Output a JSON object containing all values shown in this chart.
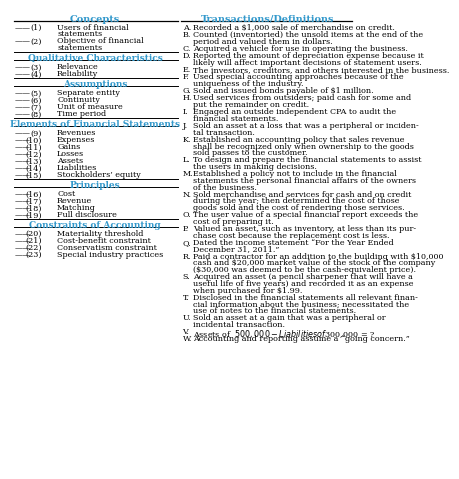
{
  "title_left": "Concepts",
  "title_right": "Transactions/Definitions",
  "header_color": "#3399CC",
  "text_color": "#000000",
  "bg_color": "#FFFFFF",
  "left_sections": [
    {
      "heading": null,
      "items": [
        [
          "(1)",
          "Users of financial",
          "statements"
        ],
        [
          "(2)",
          "Objective of financial",
          "statements"
        ]
      ]
    },
    {
      "heading": "Qualitative Characteristics",
      "items": [
        [
          "(3)",
          "Relevance"
        ],
        [
          "(4)",
          "Reliability"
        ]
      ]
    },
    {
      "heading": "Assumptions",
      "items": [
        [
          "(5)",
          "Separate entity"
        ],
        [
          "(6)",
          "Continuity"
        ],
        [
          "(7)",
          "Unit of measure"
        ],
        [
          "(8)",
          "Time period"
        ]
      ]
    },
    {
      "heading": "Elements of Financial Statements",
      "items": [
        [
          "(9)",
          "Revenues"
        ],
        [
          "(10)",
          "Expenses"
        ],
        [
          "(11)",
          "Gains"
        ],
        [
          "(12)",
          "Losses"
        ],
        [
          "(13)",
          "Assets"
        ],
        [
          "(14)",
          "Liabilities"
        ],
        [
          "(15)",
          "Stockholders’ equity"
        ]
      ]
    },
    {
      "heading": "Principles",
      "items": [
        [
          "(16)",
          "Cost"
        ],
        [
          "(17)",
          "Revenue"
        ],
        [
          "(18)",
          "Matching"
        ],
        [
          "(19)",
          "Full disclosure"
        ]
      ]
    },
    {
      "heading": "Constraints of Accounting",
      "items": [
        [
          "(20)",
          "Materiality threshold"
        ],
        [
          "(21)",
          "Cost-benefit constraint"
        ],
        [
          "(22)",
          "Conservatism constraint"
        ],
        [
          "(23)",
          "Special industry practices"
        ]
      ]
    }
  ],
  "right_items": [
    [
      "A.",
      "Recorded a $1,000 sale of merchandise on credit."
    ],
    [
      "B.",
      "Counted (inventoried) the unsold items at the end of the",
      "period and valued them in dollars."
    ],
    [
      "C.",
      "Acquired a vehicle for use in operating the business."
    ],
    [
      "D.",
      "Reported the amount of depreciation expense because it",
      "likely will affect important decisions of statement users."
    ],
    [
      "E.",
      "The investors, creditors, and others interested in the business."
    ],
    [
      "F.",
      "Used special accounting approaches because of the",
      "uniqueness of the industry."
    ],
    [
      "G.",
      "Sold and issued bonds payable of $1 million."
    ],
    [
      "H.",
      "Used services from outsiders; paid cash for some and",
      "put the remainder on credit."
    ],
    [
      "I.",
      "Engaged an outside independent CPA to audit the",
      "financial statements."
    ],
    [
      "J.",
      "Sold an asset at a loss that was a peripheral or inciden-",
      "tal transaction."
    ],
    [
      "K.",
      "Established an accounting policy that sales revenue",
      "shall be recognized only when ownership to the goods",
      "sold passes to the customer."
    ],
    [
      "L.",
      "To design and prepare the financial statements to assist",
      "the users in making decisions."
    ],
    [
      "M.",
      "Established a policy not to include in the financial",
      "statements the personal financial affairs of the owners",
      "of the business."
    ],
    [
      "N.",
      "Sold merchandise and services for cash and on credit",
      "during the year; then determined the cost of those",
      "goods sold and the cost of rendering those services."
    ],
    [
      "O.",
      "The user value of a special financial report exceeds the",
      "cost of preparing it."
    ],
    [
      "P.",
      "Valued an asset, such as inventory, at less than its pur-",
      "chase cost because the replacement cost is less."
    ],
    [
      "Q.",
      "Dated the income statement “For the Year Ended",
      "December 31, 2011.”"
    ],
    [
      "R.",
      "Paid a contractor for an addition to the building with $10,000",
      "cash and $20,000 market value of the stock of the company",
      "($30,000 was deemed to be the cash-equivalent price)."
    ],
    [
      "S.",
      "Acquired an asset (a pencil sharpener that will have a",
      "useful life of five years) and recorded it as an expense",
      "when purchased for $1.99."
    ],
    [
      "T.",
      "Disclosed in the financial statements all relevant finan-",
      "cial information about the business; necessitated the",
      "use of notes to the financial statements."
    ],
    [
      "U.",
      "Sold an asset at a gain that was a peripheral or",
      "incidental transaction."
    ],
    [
      "V.",
      "Assets of  $500,000 − Liabilities of  $300,000 = ?"
    ],
    [
      "W.",
      "Accounting and reporting assume a “going concern.”"
    ]
  ]
}
